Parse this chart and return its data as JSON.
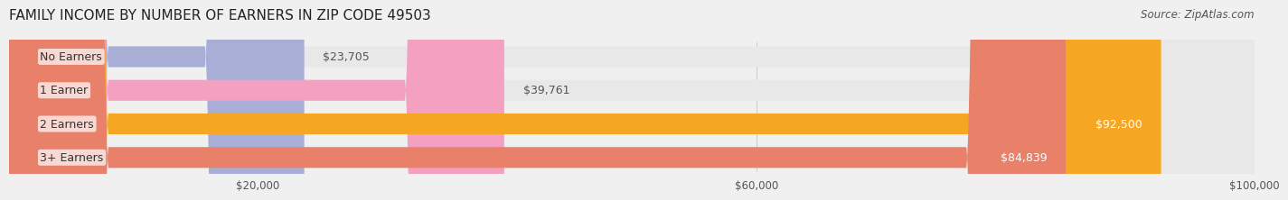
{
  "title": "FAMILY INCOME BY NUMBER OF EARNERS IN ZIP CODE 49503",
  "source": "Source: ZipAtlas.com",
  "categories": [
    "No Earners",
    "1 Earner",
    "2 Earners",
    "3+ Earners"
  ],
  "values": [
    23705,
    39761,
    92500,
    84839
  ],
  "bar_colors": [
    "#a8aed6",
    "#f4a0c0",
    "#f5a623",
    "#e8806a"
  ],
  "label_colors": [
    "#333333",
    "#333333",
    "#ffffff",
    "#ffffff"
  ],
  "background_color": "#f0f0f0",
  "bar_bg_color": "#e8e8e8",
  "xlim": [
    0,
    100000
  ],
  "xticks": [
    20000,
    60000,
    100000
  ],
  "xtick_labels": [
    "$20,000",
    "$60,000",
    "$100,000"
  ],
  "title_fontsize": 11,
  "source_fontsize": 8.5,
  "label_fontsize": 9,
  "category_fontsize": 9
}
